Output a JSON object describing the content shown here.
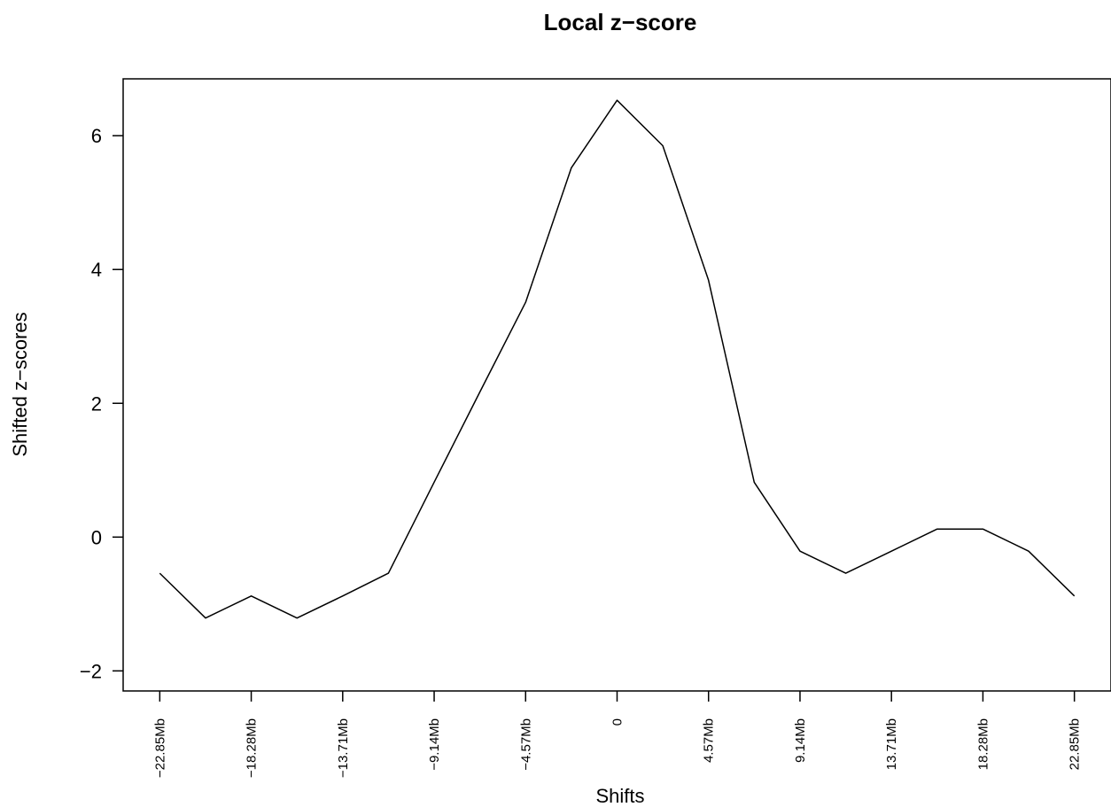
{
  "chart_data": {
    "type": "line",
    "title": "Local z−score",
    "xlabel": "Shifts",
    "ylabel": "Shifted z−scores",
    "x_tick_labels": [
      "−22.85Mb",
      "−18.28Mb",
      "−13.71Mb",
      "−9.14Mb",
      "−4.57Mb",
      "0",
      "4.57Mb",
      "9.14Mb",
      "13.71Mb",
      "18.28Mb",
      "22.85Mb"
    ],
    "y_ticks": [
      -2,
      0,
      2,
      4,
      6
    ],
    "y_tick_labels": [
      "−2",
      "0",
      "2",
      "4",
      "6"
    ],
    "xlim": [
      -24.68,
      24.68
    ],
    "ylim": [
      -2.3,
      6.85
    ],
    "grid": false,
    "series": [
      {
        "color": "#000000",
        "x": [
          -22.85,
          -20.565,
          -18.28,
          -15.995,
          -13.71,
          -11.425,
          -9.14,
          -6.855,
          -4.57,
          -2.285,
          0,
          2.285,
          4.57,
          6.855,
          9.14,
          11.425,
          13.71,
          15.995,
          18.28,
          20.565,
          22.85
        ],
        "y": [
          -0.54,
          -1.21,
          -0.88,
          -1.21,
          -0.88,
          -0.54,
          0.82,
          2.17,
          3.51,
          5.52,
          6.53,
          5.85,
          3.84,
          0.82,
          -0.21,
          -0.54,
          -0.21,
          0.12,
          0.12,
          -0.21,
          -0.88
        ]
      }
    ]
  }
}
